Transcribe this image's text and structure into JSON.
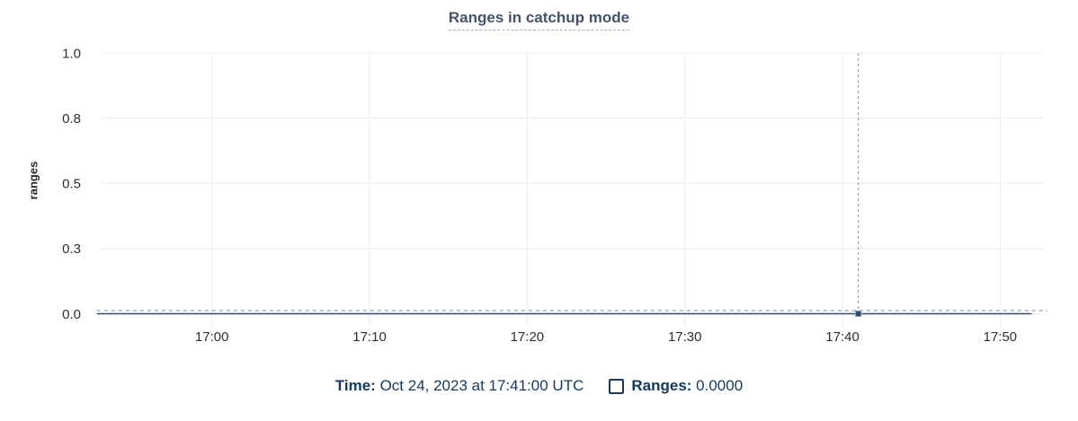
{
  "chart": {
    "title": "Ranges in catchup mode",
    "ylabel": "ranges"
  },
  "legend": {
    "time_label": "Time:",
    "time_value": " Oct 24, 2023 at 17:41:00 UTC",
    "series_label": "Ranges:",
    "series_value": " 0.0000"
  },
  "colors": {
    "title_text": "#44536b",
    "title_underline": "#9cafc4",
    "axis_text": "#2b2f36",
    "gridline": "#ececec",
    "series_solid": "#304d69",
    "series_dashed_overlay": "#b4c6d2",
    "crosshair": "#9aa8b4",
    "hover_point": "#2c4865",
    "legend_text": "#13395d",
    "swatch_border": "#1b3a58"
  },
  "chart_data": {
    "type": "line",
    "title": "Ranges in catchup mode",
    "xlabel": "",
    "ylabel": "ranges",
    "grid": true,
    "legend_position": "bottom",
    "x_axis": {
      "unit": "time of day (UTC), minutes since midnight",
      "domain_minutes": [
        1012.7,
        1073
      ],
      "ticks": [
        {
          "minute": 1020,
          "label": "17:00"
        },
        {
          "minute": 1030,
          "label": "17:10"
        },
        {
          "minute": 1040,
          "label": "17:20"
        },
        {
          "minute": 1050,
          "label": "17:30"
        },
        {
          "minute": 1060,
          "label": "17:40"
        },
        {
          "minute": 1070,
          "label": "17:50"
        }
      ]
    },
    "y_axis": {
      "domain": [
        0,
        1
      ],
      "ticks": [
        {
          "value": 0,
          "label": "0.0"
        },
        {
          "value": 0.25,
          "label": "0.3"
        },
        {
          "value": 0.5,
          "label": "0.5"
        },
        {
          "value": 0.75,
          "label": "0.8"
        },
        {
          "value": 1,
          "label": "1.0"
        }
      ]
    },
    "series": [
      {
        "name": "Ranges",
        "style": "solid",
        "color": "#304d69",
        "constant_value": 0,
        "x_extent_minutes": [
          1012.7,
          1072
        ]
      },
      {
        "name": "Ranges (dashed overlay)",
        "style": "dashed",
        "color": "#b4c6d2",
        "constant_value": 0.012,
        "x_extent_minutes": [
          1012.7,
          1073
        ]
      }
    ],
    "crosshair": {
      "minute": 1061,
      "time_label": "Oct 24, 2023 at 17:41:00 UTC",
      "hover_value": 0,
      "hover_value_label": "0.0000"
    }
  }
}
